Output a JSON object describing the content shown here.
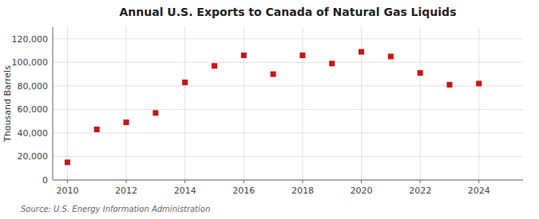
{
  "chart_data": {
    "type": "scatter",
    "title": "Annual U.S. Exports to Canada of Natural Gas Liquids",
    "y_label": "Thousand Barrels",
    "annotation": "Source: U.S. Energy Information Administration",
    "x": [
      2010,
      2011,
      2012,
      2013,
      2014,
      2015,
      2016,
      2017,
      2018,
      2019,
      2020,
      2021,
      2022,
      2023,
      2024
    ],
    "values": [
      15000,
      43000,
      49000,
      57000,
      83000,
      97000,
      106000,
      90000,
      106000,
      99000,
      109000,
      105000,
      91000,
      81000,
      82000
    ],
    "color": "#cc1111",
    "marker": "square",
    "xlim": [
      2009.5,
      2025.5
    ],
    "xticks": [
      2010,
      2012,
      2014,
      2016,
      2018,
      2020,
      2022,
      2024
    ],
    "ylim": [
      0,
      130000
    ],
    "yticks": [
      0,
      {
        "value": 20000,
        "label": "20,000"
      },
      {
        "value": 40000,
        "label": "40,000"
      },
      {
        "value": 60000,
        "label": "60,000"
      },
      {
        "value": 80000,
        "label": "80,000"
      },
      {
        "value": 100000,
        "label": "100,000"
      },
      {
        "value": 120000,
        "label": "120,000"
      }
    ],
    "grid": true
  }
}
